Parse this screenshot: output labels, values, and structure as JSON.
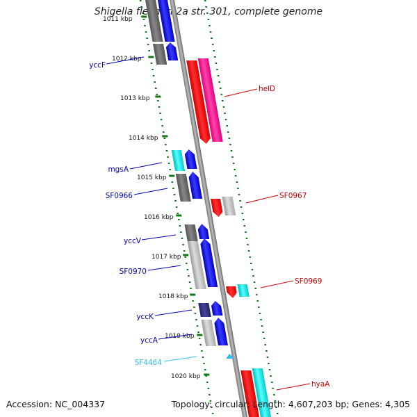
{
  "title": "Shigella flexneri 2a str. 301, complete genome",
  "footer": {
    "accession": "Accession: NC_004337",
    "summary": "Topology: circular; Length: 4,607,203 bp; Genes: 4,305"
  },
  "ticks": [
    "1011 kbp",
    "1012 kbp",
    "1013 kbp",
    "1014 kbp",
    "1015 kbp",
    "1016 kbp",
    "1017 kbp",
    "1018 kbp",
    "1019 kbp",
    "1020 kbp"
  ],
  "genes": [
    {
      "label": "yccF",
      "strand": "-",
      "color": "#0000b0"
    },
    {
      "label": "helD",
      "strand": "+",
      "color": "#cc0000"
    },
    {
      "label": "mgsA",
      "strand": "-",
      "color": "#0000b0"
    },
    {
      "label": "SF0966",
      "strand": "-",
      "color": "#0000b0"
    },
    {
      "label": "SF0967",
      "strand": "+",
      "color": "#cc0000"
    },
    {
      "label": "yccV",
      "strand": "-",
      "color": "#0000b0"
    },
    {
      "label": "SF0970",
      "strand": "-",
      "color": "#0000b0"
    },
    {
      "label": "SF0969",
      "strand": "+",
      "color": "#cc0000"
    },
    {
      "label": "yccK",
      "strand": "-",
      "color": "#0000b0"
    },
    {
      "label": "yccA",
      "strand": "-",
      "color": "#0000b0"
    },
    {
      "label": "SF4464",
      "strand": "-",
      "color": "#33bbee"
    },
    {
      "label": "hyaA",
      "strand": "+",
      "color": "#cc0000"
    }
  ]
}
